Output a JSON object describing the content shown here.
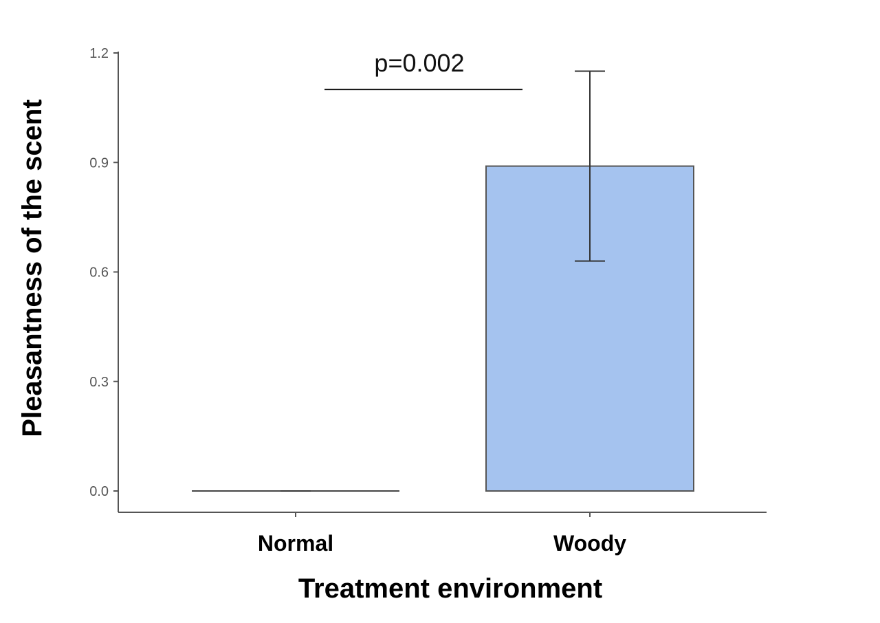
{
  "chart_data": {
    "type": "bar",
    "title": "",
    "xlabel": "Treatment environment",
    "ylabel": "Pleasantness of the scent",
    "categories": [
      "Normal",
      "Woody"
    ],
    "values": [
      0.0,
      0.89
    ],
    "error_bars": [
      {
        "low": 0.0,
        "high": 0.0
      },
      {
        "low": 0.63,
        "high": 1.15
      }
    ],
    "ylim": [
      0,
      1.2
    ],
    "yticks": [
      0.0,
      0.3,
      0.6,
      0.9,
      1.2
    ],
    "ytick_labels": [
      "0.0",
      "0.3",
      "0.6",
      "0.9",
      "1.2"
    ],
    "grid": false,
    "bar_color": "#a5c3ef",
    "annotation": {
      "text": "p=0.002",
      "y": 1.1,
      "between": [
        "Normal",
        "Woody"
      ]
    }
  }
}
